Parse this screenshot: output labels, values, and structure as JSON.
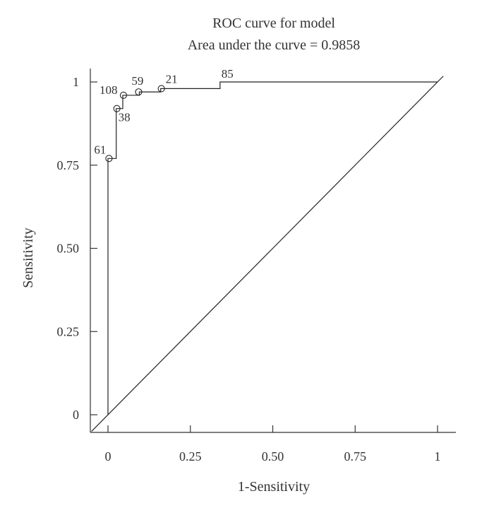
{
  "chart_data": {
    "type": "line",
    "title": "ROC curve for model",
    "subtitle": "Area under the curve = 0.9858",
    "xlabel": "1-Sensitivity",
    "ylabel": "Sensitivity",
    "xlim": [
      0,
      1
    ],
    "ylim": [
      0,
      1
    ],
    "x_ticks": [
      {
        "value": 0,
        "label": "0"
      },
      {
        "value": 0.25,
        "label": "0.25"
      },
      {
        "value": 0.5,
        "label": "0.50"
      },
      {
        "value": 0.75,
        "label": "0.75"
      },
      {
        "value": 1,
        "label": "1"
      }
    ],
    "y_ticks": [
      {
        "value": 0,
        "label": "0"
      },
      {
        "value": 0.25,
        "label": "0.25"
      },
      {
        "value": 0.5,
        "label": "0.50"
      },
      {
        "value": 0.75,
        "label": "0.75"
      },
      {
        "value": 1,
        "label": "1"
      }
    ],
    "grid": false,
    "curve": [
      [
        0,
        0
      ],
      [
        0,
        0.77
      ],
      [
        0.025,
        0.77
      ],
      [
        0.025,
        0.92
      ],
      [
        0.045,
        0.92
      ],
      [
        0.045,
        0.96
      ],
      [
        0.095,
        0.96
      ],
      [
        0.095,
        0.97
      ],
      [
        0.16,
        0.97
      ],
      [
        0.16,
        0.98
      ],
      [
        0.34,
        0.98
      ],
      [
        0.34,
        1
      ],
      [
        1,
        1
      ]
    ],
    "reference_line": [
      [
        0,
        0
      ],
      [
        1,
        1
      ]
    ],
    "labeled_points": [
      {
        "label": "61",
        "x": 0.003,
        "y": 0.77
      },
      {
        "label": "38",
        "x": 0.027,
        "y": 0.92
      },
      {
        "label": "108",
        "x": 0.047,
        "y": 0.96
      },
      {
        "label": "59",
        "x": 0.093,
        "y": 0.97
      },
      {
        "label": "21",
        "x": 0.162,
        "y": 0.98
      },
      {
        "label": "85",
        "x": 0.34,
        "y": 1
      }
    ]
  }
}
